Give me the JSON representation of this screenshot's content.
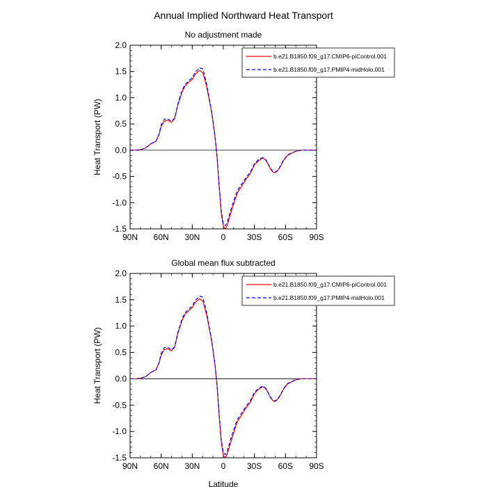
{
  "figure": {
    "title": "Annual Implied Northward Heat Transport"
  },
  "chart_data": [
    {
      "type": "line",
      "title": "No adjustment made",
      "xlabel": "",
      "ylabel": "Heat Transport (PW)",
      "xlim": [
        90,
        -90
      ],
      "ylim": [
        -1.5,
        2.0
      ],
      "x_ticks": [
        90,
        60,
        30,
        0,
        -30,
        -60,
        -90
      ],
      "x_tick_labels": [
        "90N",
        "60N",
        "30N",
        "0",
        "30S",
        "60S",
        "90S"
      ],
      "y_ticks": [
        2.0,
        1.5,
        1.0,
        0.5,
        0.0,
        -0.5,
        -1.0,
        -1.5
      ],
      "y_tick_labels": [
        "2.0",
        "1.5",
        "1.0",
        "0.5",
        "0.0",
        "-0.5",
        "-1.0",
        "-1.5"
      ],
      "zero_line": true,
      "legend_placement": "top-right",
      "series": [
        {
          "name": "b.e21.B1850.f09_g17.CMIP6-piControl.001",
          "color": "#ff0000",
          "dash": "solid",
          "x": [
            90,
            84,
            80,
            75,
            70,
            65,
            62,
            60,
            57,
            54,
            50,
            47,
            44,
            40,
            37,
            33,
            30,
            27,
            23,
            20,
            18,
            16,
            14,
            12,
            10,
            8,
            6,
            4,
            2,
            0,
            -2,
            -4,
            -6,
            -8,
            -10,
            -12,
            -14,
            -18,
            -22,
            -26,
            -30,
            -34,
            -38,
            -40,
            -42,
            -44,
            -46,
            -48,
            -50,
            -52,
            -54,
            -56,
            -58,
            -60,
            -62,
            -65,
            -70,
            -75,
            -80,
            -85,
            -90
          ],
          "y": [
            0.0,
            0.0,
            0.01,
            0.04,
            0.12,
            0.17,
            0.3,
            0.45,
            0.55,
            0.57,
            0.53,
            0.6,
            0.85,
            1.1,
            1.22,
            1.3,
            1.35,
            1.45,
            1.52,
            1.48,
            1.35,
            1.2,
            1.0,
            0.8,
            0.55,
            0.25,
            -0.15,
            -0.7,
            -1.2,
            -1.45,
            -1.5,
            -1.42,
            -1.28,
            -1.15,
            -1.03,
            -0.9,
            -0.8,
            -0.68,
            -0.55,
            -0.45,
            -0.28,
            -0.2,
            -0.15,
            -0.17,
            -0.22,
            -0.3,
            -0.37,
            -0.42,
            -0.43,
            -0.4,
            -0.35,
            -0.28,
            -0.2,
            -0.15,
            -0.1,
            -0.07,
            -0.02,
            0.0,
            0.0,
            0.0,
            0.0
          ]
        },
        {
          "name": "b.e21.B1850.f09_g17.PMIP4-midHolo.001",
          "color": "#0000ff",
          "dash": "dashed",
          "x": [
            90,
            84,
            80,
            75,
            70,
            65,
            62,
            60,
            57,
            54,
            50,
            47,
            44,
            40,
            37,
            33,
            30,
            27,
            23,
            20,
            18,
            16,
            14,
            12,
            10,
            8,
            6,
            4,
            2,
            0,
            -2,
            -4,
            -6,
            -8,
            -10,
            -12,
            -14,
            -18,
            -22,
            -26,
            -30,
            -34,
            -38,
            -40,
            -42,
            -44,
            -46,
            -48,
            -50,
            -52,
            -54,
            -56,
            -58,
            -60,
            -62,
            -65,
            -70,
            -75,
            -80,
            -85,
            -90
          ],
          "y": [
            0.0,
            0.0,
            0.01,
            0.04,
            0.12,
            0.17,
            0.31,
            0.48,
            0.59,
            0.6,
            0.55,
            0.61,
            0.87,
            1.13,
            1.25,
            1.33,
            1.38,
            1.49,
            1.57,
            1.55,
            1.42,
            1.25,
            1.03,
            0.82,
            0.56,
            0.26,
            -0.12,
            -0.68,
            -1.15,
            -1.4,
            -1.44,
            -1.36,
            -1.22,
            -1.09,
            -0.97,
            -0.85,
            -0.76,
            -0.64,
            -0.52,
            -0.42,
            -0.26,
            -0.18,
            -0.14,
            -0.16,
            -0.21,
            -0.29,
            -0.36,
            -0.41,
            -0.42,
            -0.39,
            -0.34,
            -0.27,
            -0.19,
            -0.14,
            -0.09,
            -0.06,
            -0.02,
            0.0,
            0.0,
            0.0,
            0.0
          ]
        }
      ]
    },
    {
      "type": "line",
      "title": "Global mean flux subtracted",
      "xlabel": "Latitude",
      "ylabel": "Heat Transport (PW)",
      "xlim": [
        90,
        -90
      ],
      "ylim": [
        -1.5,
        2.0
      ],
      "x_ticks": [
        90,
        60,
        30,
        0,
        -30,
        -60,
        -90
      ],
      "x_tick_labels": [
        "90N",
        "60N",
        "30N",
        "0",
        "30S",
        "60S",
        "90S"
      ],
      "y_ticks": [
        2.0,
        1.5,
        1.0,
        0.5,
        0.0,
        -0.5,
        -1.0,
        -1.5
      ],
      "y_tick_labels": [
        "2.0",
        "1.5",
        "1.0",
        "0.5",
        "0.0",
        "-0.5",
        "-1.0",
        "-1.5"
      ],
      "zero_line": true,
      "legend_placement": "top-right",
      "series": [
        {
          "name": "b.e21.B1850.f09_g17.CMIP6-piControl.001",
          "color": "#ff0000",
          "dash": "solid",
          "x": [
            90,
            84,
            80,
            75,
            70,
            65,
            62,
            60,
            57,
            54,
            50,
            47,
            44,
            40,
            37,
            33,
            30,
            27,
            23,
            20,
            18,
            16,
            14,
            12,
            10,
            8,
            6,
            4,
            2,
            0,
            -2,
            -4,
            -6,
            -8,
            -10,
            -12,
            -14,
            -18,
            -22,
            -26,
            -30,
            -34,
            -38,
            -40,
            -42,
            -44,
            -46,
            -48,
            -50,
            -52,
            -54,
            -56,
            -58,
            -60,
            -62,
            -65,
            -70,
            -75,
            -80,
            -85,
            -90
          ],
          "y": [
            0.0,
            0.0,
            0.01,
            0.04,
            0.12,
            0.17,
            0.3,
            0.45,
            0.55,
            0.57,
            0.53,
            0.6,
            0.85,
            1.1,
            1.22,
            1.3,
            1.35,
            1.45,
            1.52,
            1.48,
            1.35,
            1.2,
            1.0,
            0.8,
            0.55,
            0.25,
            -0.15,
            -0.7,
            -1.2,
            -1.45,
            -1.5,
            -1.42,
            -1.28,
            -1.15,
            -1.03,
            -0.9,
            -0.8,
            -0.68,
            -0.55,
            -0.45,
            -0.28,
            -0.2,
            -0.15,
            -0.17,
            -0.22,
            -0.3,
            -0.37,
            -0.42,
            -0.43,
            -0.4,
            -0.35,
            -0.28,
            -0.2,
            -0.15,
            -0.1,
            -0.07,
            -0.02,
            0.0,
            0.0,
            0.0,
            0.0
          ]
        },
        {
          "name": "b.e21.B1850.f09_g17.PMIP4-midHolo.001",
          "color": "#0000ff",
          "dash": "dashed",
          "x": [
            90,
            84,
            80,
            75,
            70,
            65,
            62,
            60,
            57,
            54,
            50,
            47,
            44,
            40,
            37,
            33,
            30,
            27,
            23,
            20,
            18,
            16,
            14,
            12,
            10,
            8,
            6,
            4,
            2,
            0,
            -2,
            -4,
            -6,
            -8,
            -10,
            -12,
            -14,
            -18,
            -22,
            -26,
            -30,
            -34,
            -38,
            -40,
            -42,
            -44,
            -46,
            -48,
            -50,
            -52,
            -54,
            -56,
            -58,
            -60,
            -62,
            -65,
            -70,
            -75,
            -80,
            -85,
            -90
          ],
          "y": [
            0.0,
            0.0,
            0.01,
            0.04,
            0.12,
            0.17,
            0.31,
            0.48,
            0.59,
            0.6,
            0.55,
            0.61,
            0.87,
            1.13,
            1.25,
            1.33,
            1.38,
            1.49,
            1.57,
            1.55,
            1.42,
            1.25,
            1.03,
            0.82,
            0.56,
            0.26,
            -0.12,
            -0.68,
            -1.15,
            -1.4,
            -1.44,
            -1.36,
            -1.22,
            -1.09,
            -0.97,
            -0.85,
            -0.76,
            -0.64,
            -0.52,
            -0.42,
            -0.26,
            -0.18,
            -0.14,
            -0.16,
            -0.21,
            -0.29,
            -0.36,
            -0.41,
            -0.42,
            -0.39,
            -0.34,
            -0.27,
            -0.19,
            -0.14,
            -0.09,
            -0.06,
            -0.02,
            0.0,
            0.0,
            0.0,
            0.0
          ]
        }
      ]
    }
  ]
}
